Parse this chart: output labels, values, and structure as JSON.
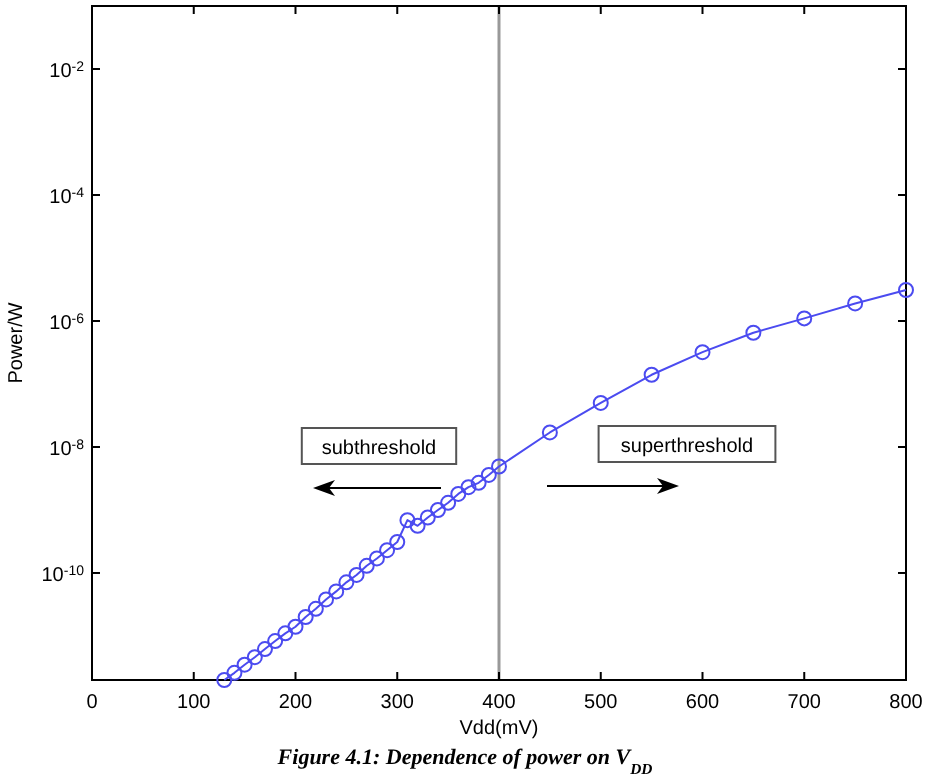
{
  "chart_data": {
    "type": "line",
    "xlabel": "Vdd(mV)",
    "ylabel": "Power/W",
    "log": "y",
    "marker": "circle",
    "line_style": "solid",
    "x": [
      130,
      140,
      150,
      160,
      170,
      180,
      190,
      200,
      210,
      220,
      230,
      240,
      250,
      260,
      270,
      280,
      290,
      300,
      310,
      320,
      330,
      340,
      350,
      360,
      370,
      380,
      390,
      400,
      450,
      500,
      550,
      600,
      650,
      700,
      750,
      800
    ],
    "series": [
      {
        "color": "#4b4bf0",
        "values": [
          2e-12,
          2.6e-12,
          3.5e-12,
          4.6e-12,
          6.2e-12,
          8.3e-12,
          1.1e-11,
          1.4e-11,
          2e-11,
          2.7e-11,
          3.8e-11,
          5.1e-11,
          7.1e-11,
          9.3e-11,
          1.3e-10,
          1.7e-10,
          2.3e-10,
          3.1e-10,
          6.9e-10,
          5.6e-10,
          7.6e-10,
          1e-09,
          1.3e-09,
          1.8e-09,
          2.3e-09,
          2.7e-09,
          3.6e-09,
          4.9e-09,
          1.7e-08,
          5e-08,
          1.4e-07,
          3.2e-07,
          6.5e-07,
          1.1e-06,
          1.9e-06,
          3.1e-06
        ]
      }
    ],
    "xlim": [
      0,
      800
    ],
    "xticks": [
      0,
      100,
      200,
      300,
      400,
      500,
      600,
      700,
      800
    ],
    "ylim": [
      2e-12,
      0.1
    ],
    "yticks": [
      {
        "value": 1e-10,
        "label": "10$^{-10}$"
      },
      {
        "value": 1e-08,
        "label": "10$^{-8}$"
      },
      {
        "value": 1e-06,
        "label": "10$^{-6}$"
      },
      {
        "value": 0.0001,
        "label": "10$^{-4}$"
      },
      {
        "value": 0.01,
        "label": "10$^{-2}$"
      }
    ],
    "ref_lines": [
      {
        "axis": "x",
        "value": 400,
        "color": "#999999"
      }
    ],
    "annotations": [
      "subthreshold",
      "superthreshold",
      "Figure 4.1: Dependence of power on V$_{DD}$"
    ]
  }
}
